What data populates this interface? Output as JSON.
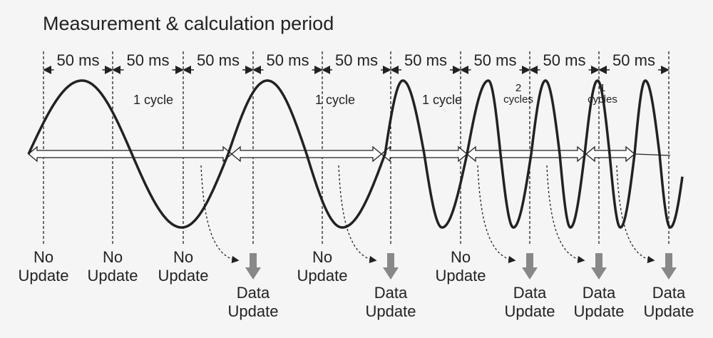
{
  "title": "Measurement & calculation period",
  "periods": [
    "50 ms",
    "50 ms",
    "50 ms",
    "50 ms",
    "50 ms",
    "50 ms",
    "50 ms",
    "50 ms",
    "50 ms"
  ],
  "cycle_labels": [
    {
      "lines": [
        "1 cycle"
      ]
    },
    {
      "lines": [
        "1 cycle"
      ]
    },
    {
      "lines": [
        "1 cycle"
      ]
    },
    {
      "lines": [
        "2",
        "cycles"
      ]
    },
    {
      "lines": [
        "1",
        "cycles"
      ]
    }
  ],
  "status_labels": [
    {
      "lines": [
        "No",
        "Update"
      ]
    },
    {
      "lines": [
        "No",
        "Update"
      ]
    },
    {
      "lines": [
        "No",
        "Update"
      ]
    },
    {
      "lines": [
        "Data",
        "Update"
      ]
    },
    {
      "lines": [
        "No",
        "Update"
      ]
    },
    {
      "lines": [
        "Data",
        "Update"
      ]
    },
    {
      "lines": [
        "No",
        "Update"
      ]
    },
    {
      "lines": [
        "Data",
        "Update"
      ]
    },
    {
      "lines": [
        "Data",
        "Update"
      ]
    },
    {
      "lines": [
        "Data",
        "Update"
      ]
    }
  ]
}
